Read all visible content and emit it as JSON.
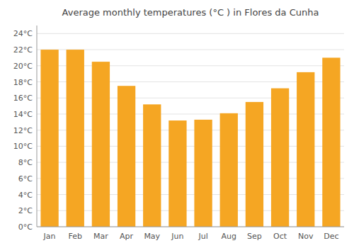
{
  "chart_data": {
    "type": "bar",
    "title": "Average monthly temperatures (°C ) in Flores da Cunha",
    "categories": [
      "Jan",
      "Feb",
      "Mar",
      "Apr",
      "May",
      "Jun",
      "Jul",
      "Aug",
      "Sep",
      "Oct",
      "Nov",
      "Dec"
    ],
    "values": [
      22.0,
      22.0,
      20.5,
      17.5,
      15.2,
      13.2,
      13.3,
      14.1,
      15.5,
      17.2,
      19.2,
      21.0
    ],
    "color": "#F5A623",
    "ylim": [
      0,
      25
    ],
    "yticks": [
      {
        "value": 0,
        "label": "0°C"
      },
      {
        "value": 2,
        "label": "2°C"
      },
      {
        "value": 4,
        "label": "4°C"
      },
      {
        "value": 6,
        "label": "6°C"
      },
      {
        "value": 8,
        "label": "8°C"
      },
      {
        "value": 10,
        "label": "10°C"
      },
      {
        "value": 12,
        "label": "12°C"
      },
      {
        "value": 14,
        "label": "14°C"
      },
      {
        "value": 16,
        "label": "16°C"
      },
      {
        "value": 18,
        "label": "18°C"
      },
      {
        "value": 20,
        "label": "20°C"
      },
      {
        "value": 22,
        "label": "22°C"
      },
      {
        "value": 24,
        "label": "24°C"
      }
    ],
    "grid": true
  }
}
